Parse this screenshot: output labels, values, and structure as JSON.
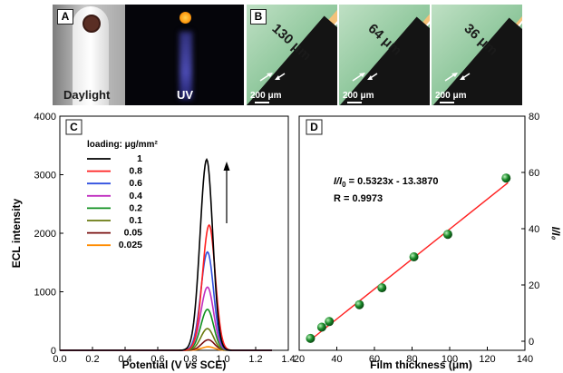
{
  "panel_a": {
    "tag": "A",
    "daylight_caption": "Daylight",
    "uv_caption": "UV"
  },
  "panel_b": {
    "tag": "B",
    "images": [
      {
        "thickness": "130 μm",
        "scale": "200 μm"
      },
      {
        "thickness": "64 μm",
        "scale": "200 μm"
      },
      {
        "thickness": "36 μm",
        "scale": "200 μm"
      }
    ]
  },
  "chart_data": [
    {
      "panel": "C",
      "type": "line",
      "xlabel_parts": [
        "Potential (V ",
        "vs",
        " SCE)"
      ],
      "ylabel": "ECL intensity",
      "xlim": [
        0.0,
        1.4
      ],
      "ylim": [
        0,
        4000
      ],
      "xticks": [
        "0.0",
        "0.2",
        "0.4",
        "0.6",
        "0.8",
        "1.0",
        "1.2",
        "1.4"
      ],
      "yticks": [
        "0",
        "1000",
        "2000",
        "3000",
        "4000"
      ],
      "legend_title": "loading: μg/mm²",
      "legend_position": "top-left",
      "series": [
        {
          "name": "1",
          "color": "#000000",
          "peak_x": 0.9,
          "peak_y": 3260,
          "width": 0.05
        },
        {
          "name": "0.8",
          "color": "#ff2020",
          "peak_x": 0.915,
          "peak_y": 2140,
          "width": 0.05
        },
        {
          "name": "0.6",
          "color": "#3050e0",
          "peak_x": 0.905,
          "peak_y": 1680,
          "width": 0.05
        },
        {
          "name": "0.4",
          "color": "#c030c0",
          "peak_x": 0.905,
          "peak_y": 1080,
          "width": 0.05
        },
        {
          "name": "0.2",
          "color": "#109020",
          "peak_x": 0.905,
          "peak_y": 700,
          "width": 0.05
        },
        {
          "name": "0.1",
          "color": "#6a7a10",
          "peak_x": 0.905,
          "peak_y": 370,
          "width": 0.05
        },
        {
          "name": "0.05",
          "color": "#7a1010",
          "peak_x": 0.91,
          "peak_y": 180,
          "width": 0.05
        },
        {
          "name": "0.025",
          "color": "#ff8c00",
          "peak_x": 0.91,
          "peak_y": 60,
          "width": 0.05
        }
      ],
      "arrow_direction": "up"
    },
    {
      "panel": "D",
      "type": "scatter",
      "xlabel": "Film thickness (μm)",
      "ylabel": "I/I₀",
      "xlim": [
        20,
        140
      ],
      "ylim": [
        0,
        80
      ],
      "xticks": [
        "20",
        "40",
        "60",
        "80",
        "100",
        "120",
        "140"
      ],
      "yticks": [
        "0",
        "20",
        "40",
        "60",
        "80"
      ],
      "x": [
        26,
        32,
        36,
        52,
        64,
        81,
        99,
        130
      ],
      "y": [
        1,
        5,
        7,
        13,
        19,
        30,
        38,
        58
      ],
      "fit": {
        "slope": 0.5323,
        "intercept": -13.387,
        "color": "#ff2020"
      },
      "marker_color": "#1a8a2a",
      "equation_parts": [
        "I/I",
        "0",
        " = 0.5323x - 13.3870"
      ],
      "r_text": "R = 0.9973"
    }
  ]
}
